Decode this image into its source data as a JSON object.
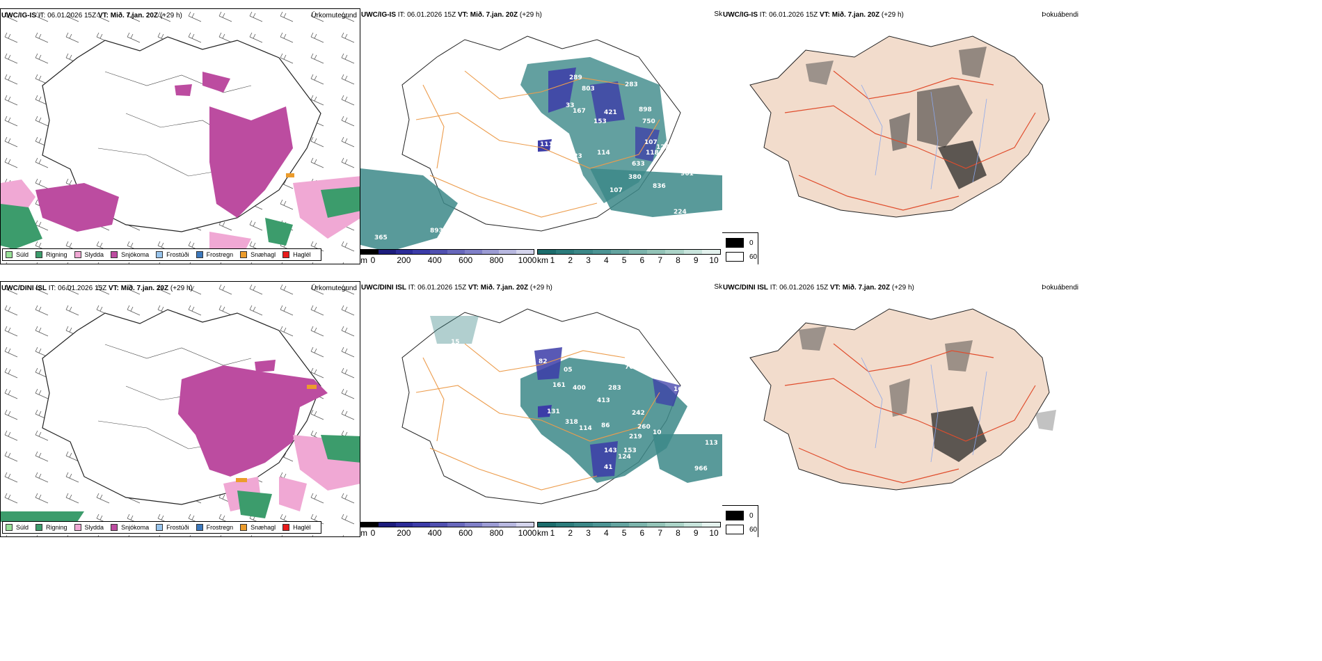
{
  "rows": [
    {
      "model": "UWC/IG-IS",
      "it_label": "IT:",
      "it_value": "06.01.2026 15Z",
      "vt_label": "VT:",
      "vt_value": "Mið. 7.jan. 20Z",
      "lead": "(+29 h)",
      "params": {
        "precip": "Úrkomutegund",
        "visibility": "Skyggni",
        "fog": "Þokuábendi"
      },
      "hills": [
        "289",
        "803",
        "283",
        "33",
        "167",
        "421",
        "898",
        "153",
        "750",
        "111",
        "123",
        "114",
        "107",
        "127",
        "118",
        "633",
        "380",
        "961",
        "836",
        "107",
        "224",
        "893",
        "365"
      ]
    },
    {
      "model": "UWC/DINI ISL",
      "it_label": "IT:",
      "it_value": "06.01.2026 15Z",
      "vt_label": "VT:",
      "vt_value": "Mið. 7.jan. 20Z",
      "lead": "(+29 h)",
      "params": {
        "precip": "Úrkomutegund",
        "visibility": "Skyggni",
        "fog": "Þokuábendi"
      },
      "hills": [
        "15",
        "82",
        "05",
        "763",
        "161",
        "400",
        "283",
        "413",
        "164",
        "131",
        "318",
        "114",
        "86",
        "242",
        "260",
        "219",
        "143",
        "153",
        "124",
        "41",
        "966",
        "113",
        "10"
      ]
    }
  ],
  "precip_legend": [
    {
      "label": "Súld",
      "color": "#98e098"
    },
    {
      "label": "Rigning",
      "color": "#3c9c6c"
    },
    {
      "label": "Slydda",
      "color": "#f0a8d4"
    },
    {
      "label": "Snjókoma",
      "color": "#bc4ca0"
    },
    {
      "label": "Frostúði",
      "color": "#98c4ec"
    },
    {
      "label": "Frostregn",
      "color": "#3c78bc"
    },
    {
      "label": "Snæhagl",
      "color": "#ec9c2c"
    },
    {
      "label": "Haglél",
      "color": "#e81c1c"
    }
  ],
  "ceiling_bar": {
    "unit": "m",
    "ticks": [
      "0",
      "200",
      "400",
      "600",
      "800",
      "1000"
    ],
    "colors": [
      "#000000",
      "#1c1c7c",
      "#2c2c98",
      "#3c3ca8",
      "#5050b0",
      "#6868bc",
      "#8080c8",
      "#9c9cd4",
      "#b8b8e0",
      "#d4d4ec"
    ]
  },
  "visibility_bar": {
    "unit": "km",
    "ticks": [
      "1",
      "2",
      "3",
      "4",
      "5",
      "6",
      "7",
      "8",
      "9",
      "10"
    ],
    "colors": [
      "#1c6c6c",
      "#2c7c7c",
      "#3c8888",
      "#4c9494",
      "#64a4a0",
      "#7cb4ac",
      "#94c4b8",
      "#acd4c8",
      "#c8e4dc",
      "#e4f2ee"
    ]
  },
  "fog_legend": [
    {
      "label": "0",
      "color": "#000000"
    },
    {
      "label": "60",
      "color": "#ffffff"
    }
  ],
  "colors": {
    "snow": "#bc4ca0",
    "sleet": "#f0a8d4",
    "rain": "#3c9c6c",
    "teal": "#3c8888",
    "ceiling_blue": "#3c3ca8",
    "roads": "#ec9c4c",
    "land_fog": "#f2dccc",
    "roads_red": "#e04c2c",
    "rivers": "#8ca8ec"
  }
}
